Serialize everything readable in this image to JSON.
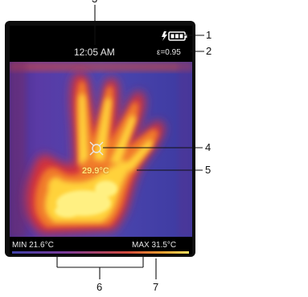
{
  "screen": {
    "time": "12:05 AM",
    "emissivity": "ε=0.95",
    "spot_temperature": "29.9°C",
    "min_label": "MIN 21.6°C",
    "max_label": "MAX 31.5°C"
  },
  "icons": {
    "battery": "charging-battery-icon",
    "crosshair": "crosshair-icon"
  },
  "callouts": [
    "1",
    "2",
    "3",
    "4",
    "5",
    "6",
    "7"
  ],
  "colors": {
    "cold": "#3a3aa8",
    "warm": "#e8442a",
    "hot": "#fff06a",
    "screen_bg": "#000000"
  }
}
